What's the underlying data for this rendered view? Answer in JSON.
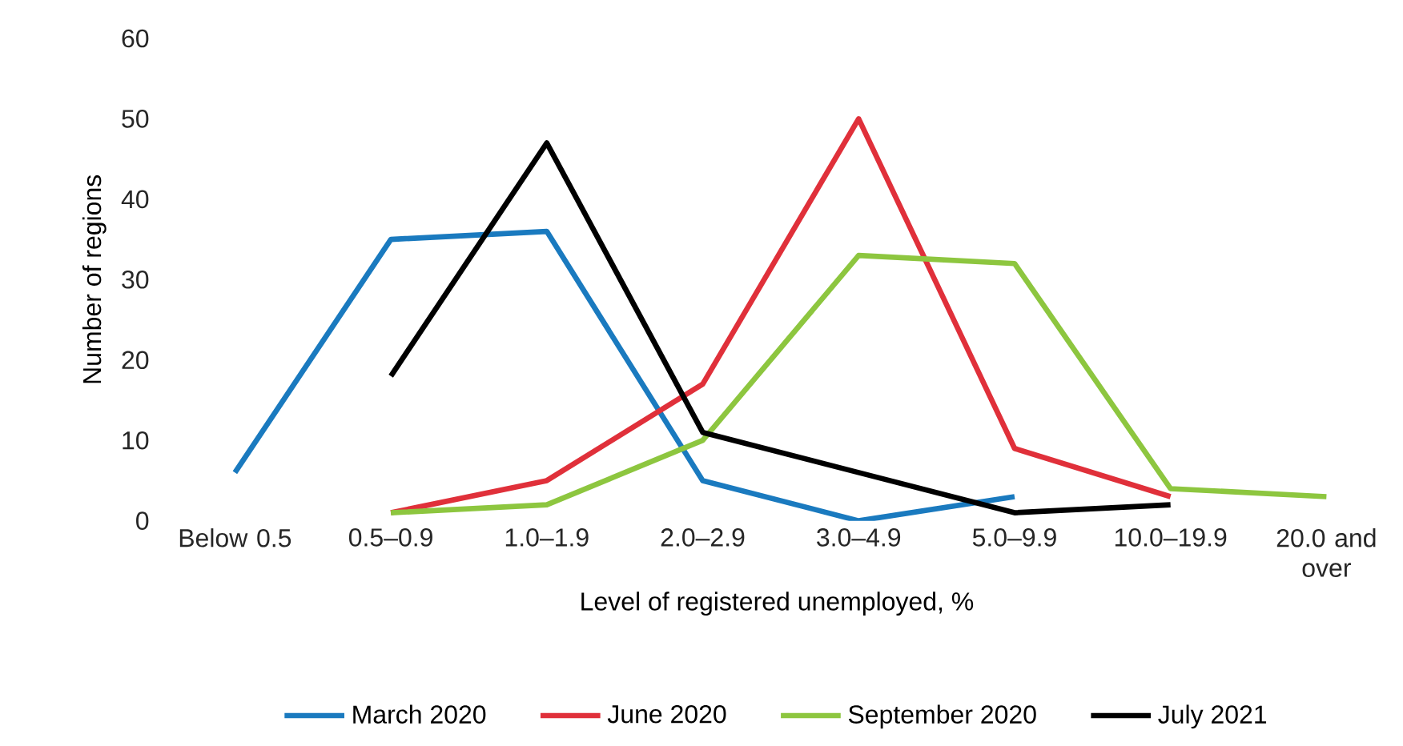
{
  "chart_data": {
    "type": "line",
    "xlabel": "Level of registered unemployed, %",
    "ylabel": "Number of regions",
    "categories": [
      "Below 0.5",
      "0.5–0.9",
      "1.0–1.9",
      "2.0–2.9",
      "3.0–4.9",
      "5.0–9.9",
      "10.0–19.9",
      "20.0 and over"
    ],
    "ylim": [
      0,
      60
    ],
    "yticks": [
      0,
      10,
      20,
      30,
      40,
      50,
      60
    ],
    "legend": "bottom",
    "grid": false,
    "series": [
      {
        "name": "March 2020",
        "color": "#1a7abf",
        "values": [
          6,
          35,
          36,
          5,
          0,
          3,
          null,
          null
        ]
      },
      {
        "name": "June 2020",
        "color": "#e0303a",
        "values": [
          null,
          1,
          5,
          17,
          50,
          9,
          3,
          null
        ]
      },
      {
        "name": "September 2020",
        "color": "#8dc63f",
        "values": [
          null,
          1,
          2,
          10,
          33,
          32,
          4,
          3
        ]
      },
      {
        "name": "July 2021",
        "color": "#000000",
        "values": [
          null,
          18,
          47,
          11,
          6,
          1,
          2,
          null
        ]
      }
    ]
  }
}
